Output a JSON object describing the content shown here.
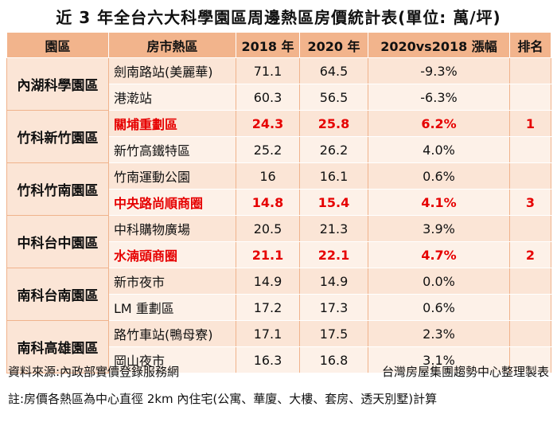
{
  "title": "近 3 年全台六大科學園區周邊熱區房價統計表(單位: 萬/坪)",
  "headers": [
    "園區",
    "房市熱區",
    "2018 年",
    "2020 年",
    "2020vs2018 漲幅",
    "排名"
  ],
  "groups": [
    {
      "name": "內湖科學園區",
      "rows": [
        {
          "district": "劍南路站(美麗華)",
          "y2018": "71.1",
          "y2020": "64.5",
          "change": "-9.3%",
          "rank": "",
          "highlight": false
        },
        {
          "district": "港漧站",
          "y2018": "60.3",
          "y2020": "56.5",
          "change": "-6.3%",
          "rank": "",
          "highlight": false
        }
      ]
    },
    {
      "name": "竹科新竹園區",
      "rows": [
        {
          "district": "關埔重劃區",
          "y2018": "24.3",
          "y2020": "25.8",
          "change": "6.2%",
          "rank": "1",
          "highlight": true
        },
        {
          "district": "新竹高鐵特區",
          "y2018": "25.2",
          "y2020": "26.2",
          "change": "4.0%",
          "rank": "",
          "highlight": false
        }
      ]
    },
    {
      "name": "竹科竹南園區",
      "rows": [
        {
          "district": "竹南運動公園",
          "y2018": "16",
          "y2020": "16.1",
          "change": "0.6%",
          "rank": "",
          "highlight": false
        },
        {
          "district": "中央路尚順商圈",
          "y2018": "14.8",
          "y2020": "15.4",
          "change": "4.1%",
          "rank": "3",
          "highlight": true
        }
      ]
    },
    {
      "name": "中科台中園區",
      "rows": [
        {
          "district": "中科購物廣場",
          "y2018": "20.5",
          "y2020": "21.3",
          "change": "3.9%",
          "rank": "",
          "highlight": false
        },
        {
          "district": "水湳頭商圈",
          "y2018": "21.1",
          "y2020": "22.1",
          "change": "4.7%",
          "rank": "2",
          "highlight": true
        }
      ]
    },
    {
      "name": "南科台南園區",
      "rows": [
        {
          "district": "新市夜市",
          "y2018": "14.9",
          "y2020": "14.9",
          "change": "0.0%",
          "rank": "",
          "highlight": false
        },
        {
          "district": "LM 重劃區",
          "y2018": "17.2",
          "y2020": "17.3",
          "change": "0.6%",
          "rank": "",
          "highlight": false
        }
      ]
    },
    {
      "name": "南科高雄園區",
      "rows": [
        {
          "district": "路竹車站(鴨母寮)",
          "y2018": "17.1",
          "y2020": "17.5",
          "change": "2.3%",
          "rank": "",
          "highlight": false
        },
        {
          "district": "岡山夜市",
          "y2018": "16.3",
          "y2020": "16.8",
          "change": "3.1%",
          "rank": "",
          "highlight": false
        }
      ]
    }
  ],
  "source": "資料來源:內政部實價登錄服務網",
  "producer": "台灣房屋集團趨勢中心整理製表",
  "note": "註:房價各熱區為中心直徑 2km 內住宅(公寓、華廈、大樓、套房、透天別墅)計算"
}
